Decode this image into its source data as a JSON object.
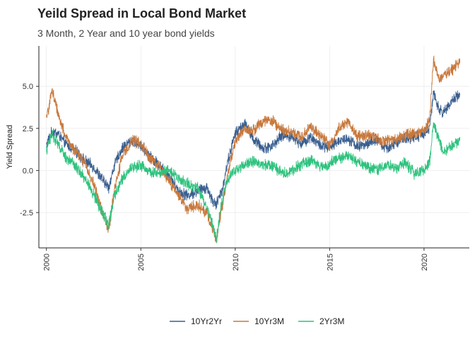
{
  "chart_data": {
    "type": "line",
    "title": "Yeild Spread in Local Bond Market",
    "subtitle": "3 Month, 2 Year and 10 year bond yields",
    "xlabel": "",
    "ylabel": "Yield Spread",
    "xlim": [
      1999.6,
      2022.4
    ],
    "ylim": [
      -4.6,
      7.4
    ],
    "x_ticks": [
      2000,
      2005,
      2010,
      2015,
      2020
    ],
    "x_tick_labels": [
      "2000",
      "2005",
      "2010",
      "2015",
      "2020"
    ],
    "y_ticks": [
      -2.5,
      0.0,
      2.5,
      5.0
    ],
    "y_tick_labels": [
      "-2.5",
      "0.0",
      "2.5",
      "5.0"
    ],
    "grid": true,
    "legend_position": "bottom",
    "series": [
      {
        "name": "10Yr2Yr",
        "color": "#3a5f8f",
        "x": [
          2000.0,
          2000.3,
          2000.6,
          2001.0,
          2001.5,
          2002.0,
          2002.5,
          2003.0,
          2003.3,
          2003.6,
          2004.0,
          2004.5,
          2005.0,
          2005.5,
          2006.0,
          2006.5,
          2007.0,
          2007.5,
          2008.0,
          2008.5,
          2008.8,
          2009.0,
          2009.3,
          2009.6,
          2010.0,
          2010.5,
          2011.0,
          2011.5,
          2012.0,
          2012.5,
          2013.0,
          2013.5,
          2014.0,
          2014.5,
          2015.0,
          2015.5,
          2016.0,
          2016.5,
          2017.0,
          2017.5,
          2018.0,
          2018.5,
          2019.0,
          2019.5,
          2020.0,
          2020.3,
          2020.5,
          2020.8,
          2021.0,
          2021.5,
          2021.9
        ],
        "y": [
          1.5,
          2.3,
          2.2,
          1.6,
          1.2,
          0.6,
          0.2,
          -0.6,
          -1.0,
          0.3,
          1.3,
          1.8,
          1.5,
          0.8,
          0.3,
          -0.3,
          -1.2,
          -1.5,
          -1.2,
          -1.0,
          -1.8,
          -2.0,
          -1.2,
          0.5,
          2.2,
          2.8,
          1.8,
          1.3,
          1.5,
          2.1,
          2.0,
          1.6,
          2.0,
          1.5,
          1.3,
          1.8,
          1.9,
          1.4,
          1.6,
          1.8,
          1.3,
          1.6,
          1.9,
          2.0,
          2.2,
          2.5,
          4.6,
          3.6,
          3.4,
          4.2,
          4.5
        ]
      },
      {
        "name": "10Yr3M",
        "color": "#c8783c",
        "x": [
          2000.0,
          2000.3,
          2000.6,
          2001.0,
          2001.5,
          2002.0,
          2002.5,
          2003.0,
          2003.3,
          2003.6,
          2004.0,
          2004.5,
          2005.0,
          2005.5,
          2006.0,
          2006.5,
          2007.0,
          2007.5,
          2008.0,
          2008.5,
          2008.8,
          2009.0,
          2009.3,
          2009.6,
          2010.0,
          2010.5,
          2011.0,
          2011.5,
          2012.0,
          2012.5,
          2013.0,
          2013.5,
          2014.0,
          2014.5,
          2015.0,
          2015.5,
          2016.0,
          2016.5,
          2017.0,
          2017.5,
          2018.0,
          2018.5,
          2019.0,
          2019.5,
          2020.0,
          2020.3,
          2020.5,
          2020.8,
          2021.0,
          2021.5,
          2021.9
        ],
        "y": [
          3.0,
          4.8,
          3.5,
          2.0,
          1.2,
          0.5,
          -0.8,
          -2.6,
          -3.5,
          -1.2,
          0.8,
          1.8,
          1.6,
          0.7,
          0.2,
          -0.6,
          -1.5,
          -2.3,
          -2.0,
          -2.6,
          -3.4,
          -4.1,
          -2.2,
          -0.2,
          1.7,
          2.5,
          2.4,
          3.0,
          2.9,
          2.4,
          2.3,
          2.0,
          2.6,
          2.1,
          1.5,
          2.5,
          2.9,
          2.0,
          2.1,
          1.9,
          1.7,
          1.9,
          2.1,
          2.2,
          2.4,
          3.0,
          6.6,
          5.4,
          5.5,
          6.0,
          6.4
        ]
      },
      {
        "name": "2Yr3M",
        "color": "#2ec27e",
        "x": [
          2000.0,
          2000.3,
          2000.6,
          2001.0,
          2001.5,
          2002.0,
          2002.5,
          2003.0,
          2003.3,
          2003.6,
          2004.0,
          2004.5,
          2005.0,
          2005.5,
          2006.0,
          2006.5,
          2007.0,
          2007.5,
          2008.0,
          2008.5,
          2008.8,
          2009.0,
          2009.3,
          2009.6,
          2010.0,
          2010.5,
          2011.0,
          2011.5,
          2012.0,
          2012.5,
          2013.0,
          2013.5,
          2014.0,
          2014.5,
          2015.0,
          2015.5,
          2016.0,
          2016.5,
          2017.0,
          2017.5,
          2018.0,
          2018.5,
          2019.0,
          2019.5,
          2020.0,
          2020.3,
          2020.5,
          2020.8,
          2021.0,
          2021.5,
          2021.9
        ],
        "y": [
          1.2,
          2.2,
          1.6,
          0.8,
          0.3,
          -0.4,
          -1.4,
          -2.6,
          -3.2,
          -1.5,
          -0.5,
          0.2,
          0.3,
          -0.1,
          -0.1,
          0.1,
          -0.5,
          -0.8,
          -1.0,
          -2.2,
          -3.2,
          -4.0,
          -1.8,
          -0.5,
          0.0,
          0.4,
          0.5,
          0.3,
          0.3,
          -0.2,
          0.0,
          0.4,
          0.6,
          0.2,
          0.4,
          0.7,
          0.9,
          0.5,
          0.2,
          0.0,
          0.4,
          0.1,
          0.5,
          -0.2,
          0.0,
          0.5,
          2.8,
          1.8,
          1.1,
          1.4,
          1.8
        ]
      }
    ]
  }
}
